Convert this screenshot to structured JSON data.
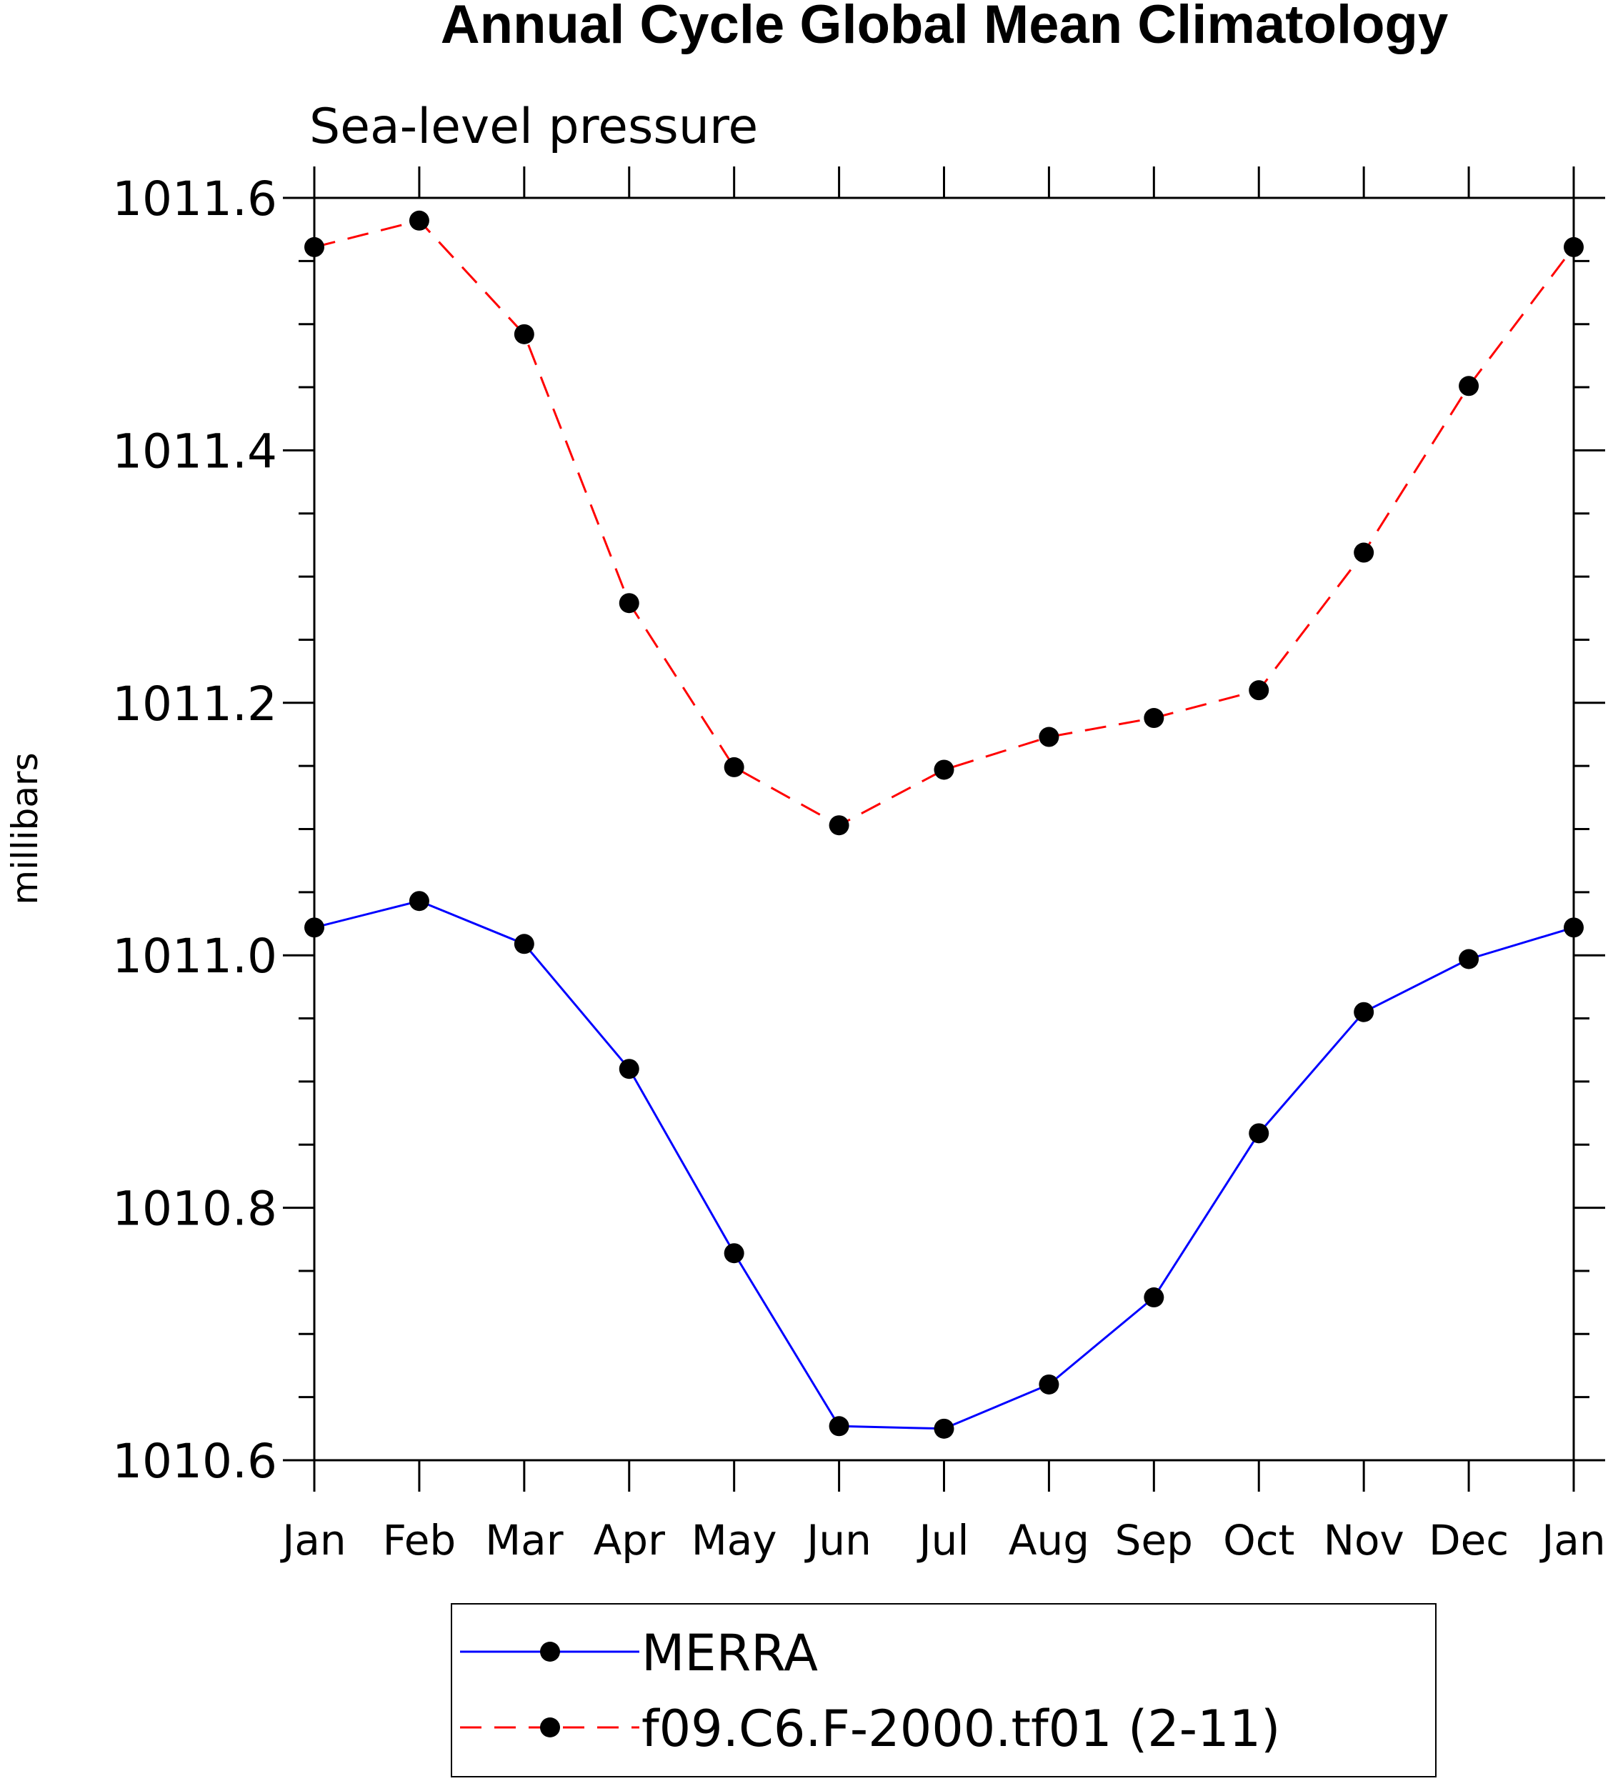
{
  "chart_data": {
    "type": "line",
    "title": "Annual Cycle Global Mean Climatology",
    "subtitle": "Sea-level pressure",
    "ylabel": "millibars",
    "xlabel": "",
    "categories": [
      "Jan",
      "Feb",
      "Mar",
      "Apr",
      "May",
      "Jun",
      "Jul",
      "Aug",
      "Sep",
      "Oct",
      "Nov",
      "Dec",
      "Jan"
    ],
    "ylim": [
      1010.6,
      1011.6
    ],
    "yticks": [
      1010.6,
      1010.8,
      1011.0,
      1011.2,
      1011.4,
      1011.6
    ],
    "ytick_labels": [
      "1010.6",
      "1010.8",
      "1011.0",
      "1011.2",
      "1011.4",
      "1011.6"
    ],
    "yminor_step": 0.05,
    "grid": false,
    "legend_position": "bottom-center",
    "series": [
      {
        "name": "MERRA",
        "color": "#0000ff",
        "dash": "solid",
        "marker": "filled-circle",
        "values": [
          1011.022,
          1011.043,
          1011.009,
          1010.91,
          1010.764,
          1010.627,
          1010.625,
          1010.66,
          1010.729,
          1010.859,
          1010.955,
          1010.997,
          1011.022
        ]
      },
      {
        "name": "f09.C6.F-2000.tf01 (2-11)",
        "color": "#ff0000",
        "dash": "dashed",
        "marker": "filled-circle",
        "values": [
          1011.561,
          1011.582,
          1011.492,
          1011.279,
          1011.149,
          1011.103,
          1011.147,
          1011.173,
          1011.188,
          1011.21,
          1011.319,
          1011.451,
          1011.561
        ]
      }
    ]
  }
}
